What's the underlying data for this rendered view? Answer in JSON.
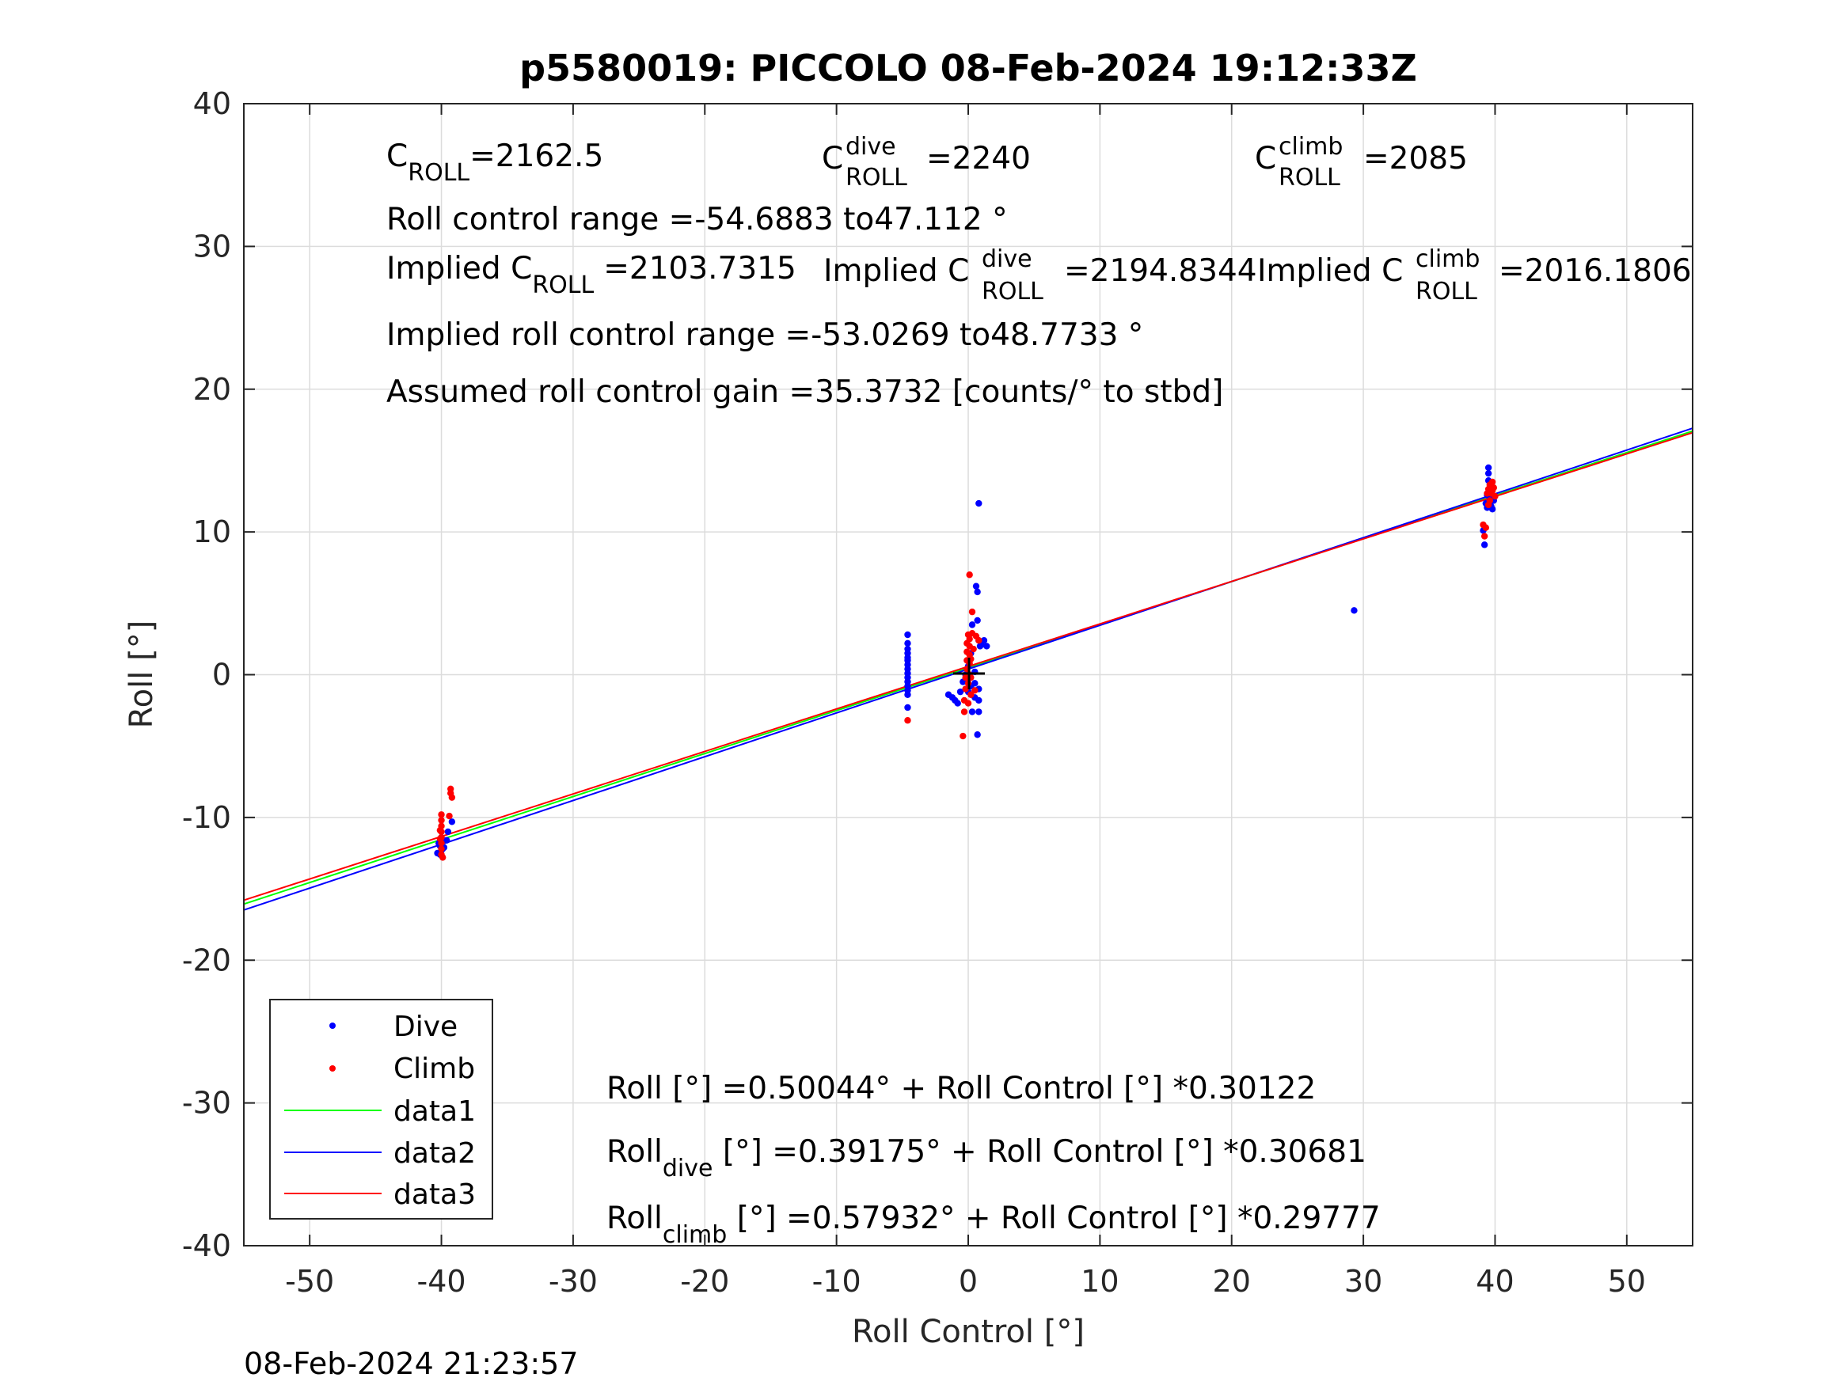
{
  "chart_data": {
    "type": "scatter",
    "title": "p5580019: PICCOLO 08-Feb-2024 19:12:33Z",
    "xlabel": "Roll Control [°]",
    "ylabel": "Roll [°]",
    "xlim": [
      -55,
      55
    ],
    "ylim": [
      -40,
      40
    ],
    "grid": true,
    "xticks": [
      "-50",
      "-40",
      "-30",
      "-20",
      "-10",
      "0",
      "10",
      "20",
      "30",
      "40",
      "50"
    ],
    "yticks": [
      "40",
      "30",
      "20",
      "10",
      "0",
      "-10",
      "-20",
      "-30",
      "-40"
    ],
    "timestamp": "08-Feb-2024 21:23:57",
    "legend": {
      "placement": "bottom-left",
      "entries": [
        {
          "label": "Dive",
          "marker": "dot",
          "color": "#0000ff"
        },
        {
          "label": "Climb",
          "marker": "dot",
          "color": "#ff0000"
        },
        {
          "label": "data1",
          "marker": "line",
          "color": "#00ff00"
        },
        {
          "label": "data2",
          "marker": "line",
          "color": "#0000ff"
        },
        {
          "label": "data3",
          "marker": "line",
          "color": "#ff0000"
        }
      ]
    },
    "annotations": {
      "c_roll": {
        "base": "C",
        "sub": "ROLL",
        "value": "=2162.5"
      },
      "c_roll_dive": {
        "base": "C",
        "sup": "dive",
        "sub": "ROLL",
        "value": "=2240"
      },
      "c_roll_climb": {
        "base": "C",
        "sup": "climb",
        "sub": "ROLL",
        "value": "=2085"
      },
      "range": "Roll control range =-54.6883 to47.112 °",
      "implied_c_roll": {
        "prefix": "Implied C",
        "sub": "ROLL",
        "value": "=2103.7315"
      },
      "implied_c_roll_dive": {
        "prefix": "Implied C",
        "sup": "dive",
        "sub": "ROLL",
        "value": "=2194.8344"
      },
      "implied_c_roll_climb": {
        "prefix": "Implied C",
        "sup": "climb",
        "sub": "ROLL",
        "value": "=2016.1806"
      },
      "implied_range": "Implied roll control range =-53.0269 to48.7733 °",
      "gain": "Assumed roll control gain =35.3732 [counts/° to stbd]",
      "eq_all": "Roll [°] =0.50044° + Roll Control [°] *0.30122",
      "eq_dive": {
        "base": "Roll",
        "sub": "dive",
        "rest": " [°] =0.39175° + Roll Control [°] *0.30681"
      },
      "eq_climb": {
        "base": "Roll",
        "sub": "climb",
        "rest": " [°] =0.57932° + Roll Control [°] *0.29777"
      }
    },
    "fit_lines": [
      {
        "name": "data1",
        "color": "#00ff00",
        "intercept": 0.50044,
        "slope": 0.30122
      },
      {
        "name": "data2",
        "color": "#0000ff",
        "intercept": 0.39175,
        "slope": 0.30681
      },
      {
        "name": "data3",
        "color": "#ff0000",
        "intercept": 0.57932,
        "slope": 0.29777
      }
    ],
    "series": [
      {
        "name": "Dive",
        "color": "#0000ff",
        "points": [
          [
            -40.1,
            -12.0
          ],
          [
            -40.2,
            -11.8
          ],
          [
            -40.0,
            -12.3
          ],
          [
            -39.9,
            -11.6
          ],
          [
            -40.3,
            -12.5
          ],
          [
            -40.1,
            -12.6
          ],
          [
            -39.8,
            -12.1
          ],
          [
            -40.0,
            -11.4
          ],
          [
            -39.2,
            -10.3
          ],
          [
            -39.5,
            -11.0
          ],
          [
            -39.6,
            -11.6
          ],
          [
            -39.9,
            -12.2
          ],
          [
            -4.6,
            2.8
          ],
          [
            -4.6,
            2.2
          ],
          [
            -4.6,
            1.8
          ],
          [
            -4.6,
            1.5
          ],
          [
            -4.6,
            1.2
          ],
          [
            -4.6,
            1.0
          ],
          [
            -4.6,
            0.7
          ],
          [
            -4.6,
            0.4
          ],
          [
            -4.6,
            0.1
          ],
          [
            -4.6,
            -0.2
          ],
          [
            -4.6,
            -0.5
          ],
          [
            -4.6,
            -0.8
          ],
          [
            -4.6,
            -1.1
          ],
          [
            -4.6,
            -1.4
          ],
          [
            -4.6,
            -2.3
          ],
          [
            -1.5,
            -1.4
          ],
          [
            -1.2,
            -1.6
          ],
          [
            -1.0,
            -1.8
          ],
          [
            -0.8,
            -2.0
          ],
          [
            -0.6,
            -1.2
          ],
          [
            -0.4,
            -0.5
          ],
          [
            -0.2,
            0.0
          ],
          [
            -0.2,
            -1.0
          ],
          [
            0.0,
            0.6
          ],
          [
            0.0,
            -0.3
          ],
          [
            0.0,
            -1.2
          ],
          [
            0.2,
            1.5
          ],
          [
            0.2,
            -0.8
          ],
          [
            0.3,
            3.5
          ],
          [
            0.3,
            -2.6
          ],
          [
            0.5,
            0.2
          ],
          [
            0.5,
            -0.6
          ],
          [
            0.5,
            -1.6
          ],
          [
            0.6,
            6.2
          ],
          [
            0.7,
            5.8
          ],
          [
            0.7,
            3.8
          ],
          [
            0.8,
            12.0
          ],
          [
            0.8,
            2.4
          ],
          [
            0.8,
            -1.0
          ],
          [
            0.8,
            -1.8
          ],
          [
            0.8,
            -2.6
          ],
          [
            0.7,
            -4.2
          ],
          [
            1.0,
            2.1
          ],
          [
            1.2,
            2.4
          ],
          [
            1.4,
            2.0
          ],
          [
            0.9,
            2.0
          ],
          [
            29.3,
            4.5
          ],
          [
            39.1,
            10.1
          ],
          [
            39.2,
            9.1
          ],
          [
            39.3,
            12.0
          ],
          [
            39.4,
            12.6
          ],
          [
            39.5,
            14.5
          ],
          [
            39.5,
            14.1
          ],
          [
            39.5,
            13.6
          ],
          [
            39.6,
            13.0
          ],
          [
            39.6,
            12.3
          ],
          [
            39.7,
            11.8
          ],
          [
            39.8,
            11.6
          ],
          [
            39.9,
            12.2
          ],
          [
            39.4,
            11.7
          ]
        ]
      },
      {
        "name": "Climb",
        "color": "#ff0000",
        "points": [
          [
            -40.0,
            -9.8
          ],
          [
            -40.0,
            -10.2
          ],
          [
            -40.0,
            -10.6
          ],
          [
            -40.0,
            -11.0
          ],
          [
            -40.0,
            -11.4
          ],
          [
            -40.0,
            -11.8
          ],
          [
            -40.0,
            -12.2
          ],
          [
            -40.0,
            -12.6
          ],
          [
            -39.9,
            -12.8
          ],
          [
            -40.1,
            -10.9
          ],
          [
            -40.1,
            -11.5
          ],
          [
            -39.3,
            -8.0
          ],
          [
            -39.3,
            -8.3
          ],
          [
            -39.2,
            -8.6
          ],
          [
            -39.4,
            -9.9
          ],
          [
            -4.6,
            -3.2
          ],
          [
            -0.4,
            -4.3
          ],
          [
            -0.3,
            -2.6
          ],
          [
            -0.3,
            -1.8
          ],
          [
            -0.2,
            -1.0
          ],
          [
            -0.2,
            -0.2
          ],
          [
            -0.1,
            0.4
          ],
          [
            -0.1,
            1.0
          ],
          [
            -0.1,
            1.6
          ],
          [
            -0.1,
            2.2
          ],
          [
            0.0,
            2.8
          ],
          [
            0.0,
            -2.0
          ],
          [
            0.0,
            -0.6
          ],
          [
            0.1,
            0.0
          ],
          [
            0.1,
            0.8
          ],
          [
            0.1,
            1.4
          ],
          [
            0.1,
            2.0
          ],
          [
            0.1,
            2.5
          ],
          [
            0.2,
            -0.2
          ],
          [
            0.2,
            -1.4
          ],
          [
            0.2,
            1.1
          ],
          [
            0.1,
            7.0
          ],
          [
            0.3,
            2.9
          ],
          [
            0.3,
            4.4
          ],
          [
            0.4,
            1.8
          ],
          [
            0.5,
            -1.1
          ],
          [
            0.6,
            2.7
          ],
          [
            0.8,
            2.4
          ],
          [
            39.1,
            10.5
          ],
          [
            39.2,
            9.7
          ],
          [
            39.3,
            10.3
          ],
          [
            39.4,
            12.7
          ],
          [
            39.5,
            13.0
          ],
          [
            39.6,
            12.2
          ],
          [
            39.6,
            13.3
          ],
          [
            39.7,
            12.7
          ],
          [
            39.8,
            13.5
          ],
          [
            39.8,
            12.9
          ],
          [
            39.9,
            13.1
          ],
          [
            40.0,
            12.5
          ],
          [
            39.5,
            11.9
          ]
        ]
      }
    ]
  }
}
